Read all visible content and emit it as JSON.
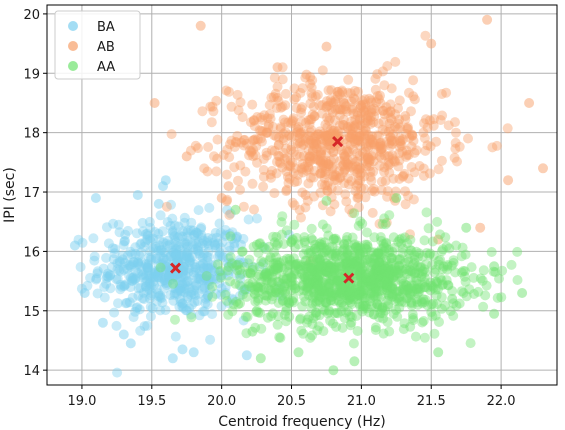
{
  "chart_data": {
    "type": "scatter",
    "xlabel": "Centroid frequency (Hz)",
    "ylabel": "IPI (sec)",
    "xlim": [
      18.75,
      22.4
    ],
    "ylim": [
      13.75,
      20.15
    ],
    "x_ticks": [
      "19.0",
      "19.5",
      "20.0",
      "20.5",
      "21.0",
      "21.5",
      "22.0"
    ],
    "y_ticks": [
      "14",
      "15",
      "16",
      "17",
      "18",
      "19",
      "20"
    ],
    "grid": true,
    "legend_position": "top-left",
    "series": [
      {
        "name": "BA",
        "color": "#7ccfef",
        "centroid": [
          19.67,
          15.72
        ],
        "spread": [
          0.27,
          0.42
        ],
        "approx_points": 550,
        "sample_points": [
          [
            18.95,
            16.1
          ],
          [
            19.02,
            15.3
          ],
          [
            19.1,
            16.9
          ],
          [
            19.15,
            14.8
          ],
          [
            19.3,
            14.6
          ],
          [
            19.35,
            14.45
          ],
          [
            19.58,
            17.1
          ],
          [
            19.6,
            17.2
          ],
          [
            19.72,
            14.35
          ],
          [
            19.8,
            14.3
          ],
          [
            19.65,
            14.2
          ],
          [
            20.18,
            14.25
          ],
          [
            19.55,
            16.8
          ],
          [
            19.4,
            16.95
          ],
          [
            19.88,
            15.4
          ]
        ]
      },
      {
        "name": "AB",
        "color": "#f7a06a",
        "centroid": [
          20.83,
          17.85
        ],
        "spread": [
          0.38,
          0.52
        ],
        "approx_points": 750,
        "sample_points": [
          [
            19.85,
            19.8
          ],
          [
            19.52,
            18.5
          ],
          [
            21.9,
            19.9
          ],
          [
            22.2,
            18.5
          ],
          [
            22.3,
            17.4
          ],
          [
            20.4,
            19.1
          ],
          [
            20.75,
            19.45
          ],
          [
            21.5,
            19.5
          ],
          [
            20.0,
            16.9
          ],
          [
            20.05,
            17.1
          ],
          [
            21.85,
            16.4
          ],
          [
            22.05,
            17.2
          ],
          [
            19.75,
            17.6
          ],
          [
            21.55,
            16.2
          ],
          [
            20.6,
            16.95
          ]
        ]
      },
      {
        "name": "AA",
        "color": "#6fe26f",
        "centroid": [
          20.91,
          15.55
        ],
        "spread": [
          0.42,
          0.38
        ],
        "approx_points": 1100,
        "sample_points": [
          [
            21.95,
            15.75
          ],
          [
            22.15,
            15.3
          ],
          [
            21.95,
            14.95
          ],
          [
            20.8,
            14.0
          ],
          [
            20.95,
            14.15
          ],
          [
            20.55,
            14.3
          ],
          [
            21.55,
            14.3
          ],
          [
            20.22,
            14.65
          ],
          [
            20.28,
            14.2
          ],
          [
            20.1,
            16.7
          ],
          [
            21.25,
            16.9
          ],
          [
            21.75,
            16.4
          ],
          [
            21.65,
            15.2
          ],
          [
            20.75,
            16.85
          ],
          [
            20.35,
            15.9
          ]
        ]
      }
    ],
    "centroid_marker": {
      "shape": "x",
      "color": "#d62728"
    }
  }
}
